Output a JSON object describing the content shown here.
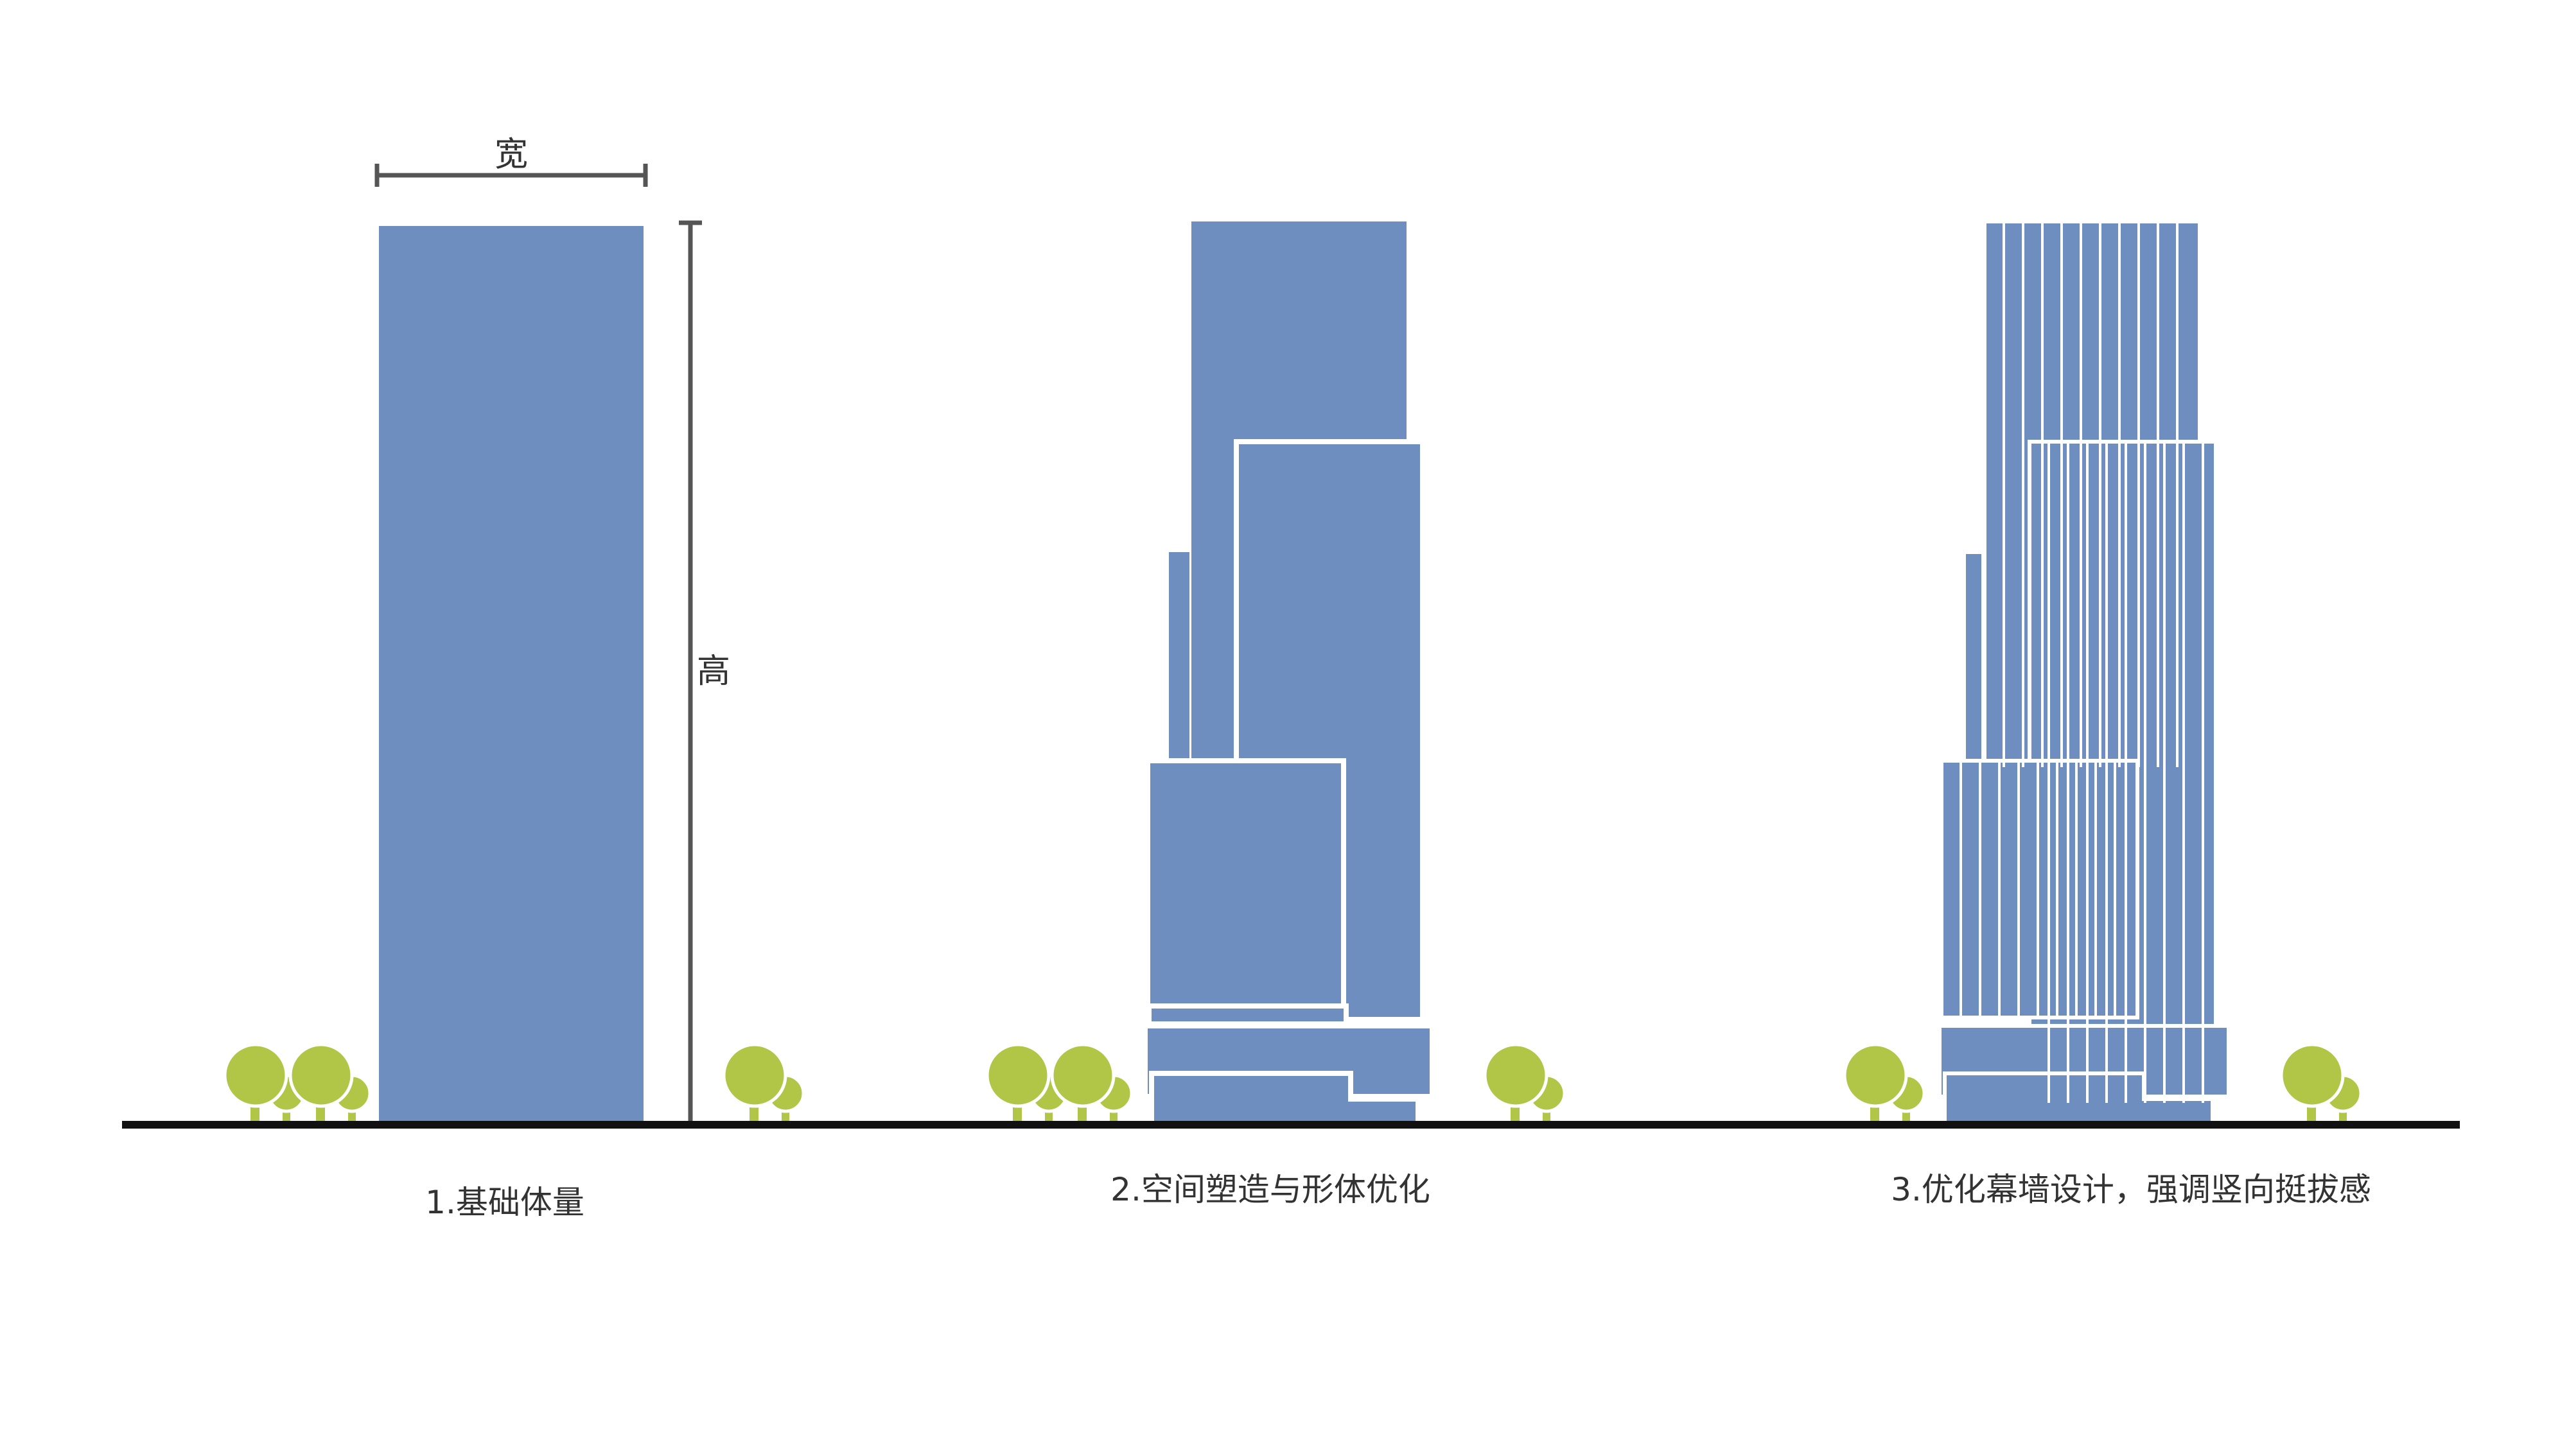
{
  "dimension_labels": {
    "width": "宽",
    "height": "高"
  },
  "steps": [
    {
      "caption": "1.基础体量"
    },
    {
      "caption": "2.空间塑造与形体优化"
    },
    {
      "caption": "3.优化幕墙设计，强调竖向挺拔感"
    }
  ],
  "colors": {
    "building": "#6d8ebf",
    "tree": "#b1c646",
    "ground": "#111111",
    "dimension": "#555555",
    "outline": "#ffffff"
  }
}
